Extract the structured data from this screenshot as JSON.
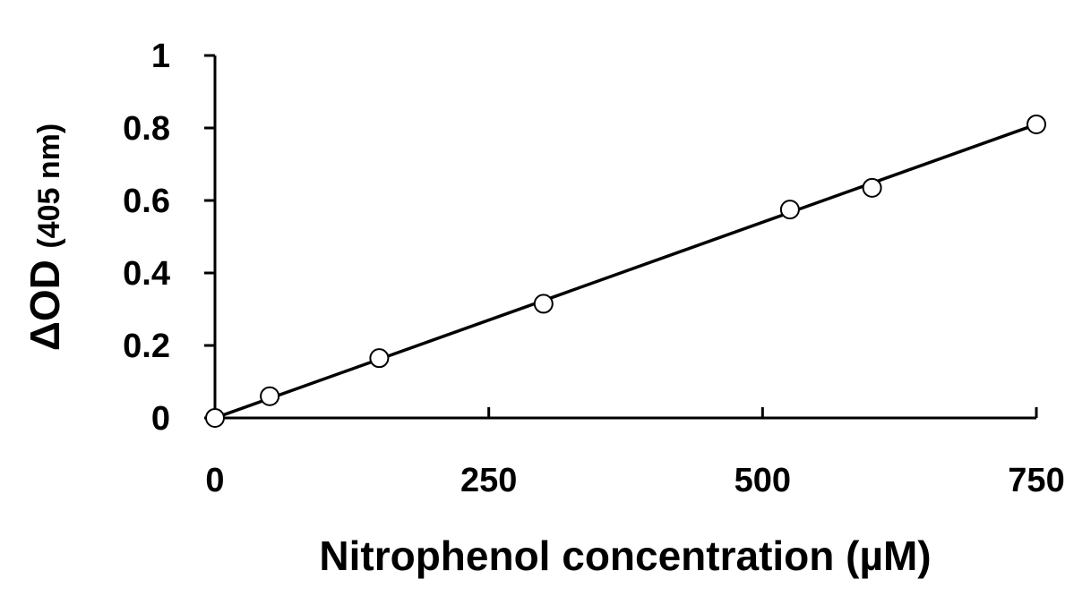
{
  "chart_data": {
    "type": "scatter",
    "xlabel": "Nitrophenol concentration (µM)",
    "ylabel_main": "ΔOD",
    "ylabel_sub": "(405 nm)",
    "xlim": [
      0,
      750
    ],
    "ylim": [
      0,
      1
    ],
    "xticks": [
      0,
      250,
      500,
      750
    ],
    "yticks": [
      0,
      0.2,
      0.4,
      0.6,
      0.8,
      1
    ],
    "ytick_labels": [
      "0",
      "0.2",
      "0.4",
      "0.6",
      "0.8",
      "1"
    ],
    "xtick_labels": [
      "0",
      "250",
      "500",
      "750"
    ],
    "grid": false,
    "legend": false,
    "series": [
      {
        "x": [
          0,
          50,
          150,
          300,
          525,
          600,
          750
        ],
        "y": [
          0,
          0.06,
          0.165,
          0.315,
          0.575,
          0.635,
          0.81
        ]
      }
    ],
    "trendline": {
      "type": "linear",
      "x": [
        0,
        750
      ],
      "y": [
        0,
        0.81
      ]
    },
    "colors": {
      "axis": "#000000",
      "marker_fill": "#ffffff",
      "marker_stroke": "#000000",
      "line": "#000000"
    }
  }
}
